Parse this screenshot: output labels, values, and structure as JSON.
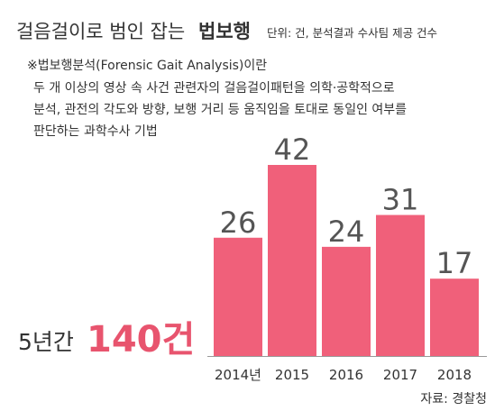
{
  "chart_data": {
    "type": "bar",
    "title": "걸음걸이로 범인 잡는",
    "title_emphasis": "법보행",
    "subtitle": "단위: 건, 분석결과 수사팀 제공 건수",
    "note_title": "※법보행분석(Forensic Gait Analysis)이란",
    "note_lines": [
      "두 개 이상의 영상 속 사건 관련자의 걸음걸이패턴을 의학·공학적으로",
      "분석, 관전의 각도와 방향, 보행 거리 등 움직임을 토대로 동일인 여부를",
      "판단하는 과학수사 기법"
    ],
    "total_label": "5년간",
    "total_value": "140건",
    "source": "자료: 경찰청",
    "categories": [
      "2014년",
      "2015",
      "2016",
      "2017",
      "2018"
    ],
    "values": [
      26,
      42,
      24,
      31,
      17
    ],
    "color": "#f0607a",
    "ylim": [
      0,
      42
    ]
  }
}
